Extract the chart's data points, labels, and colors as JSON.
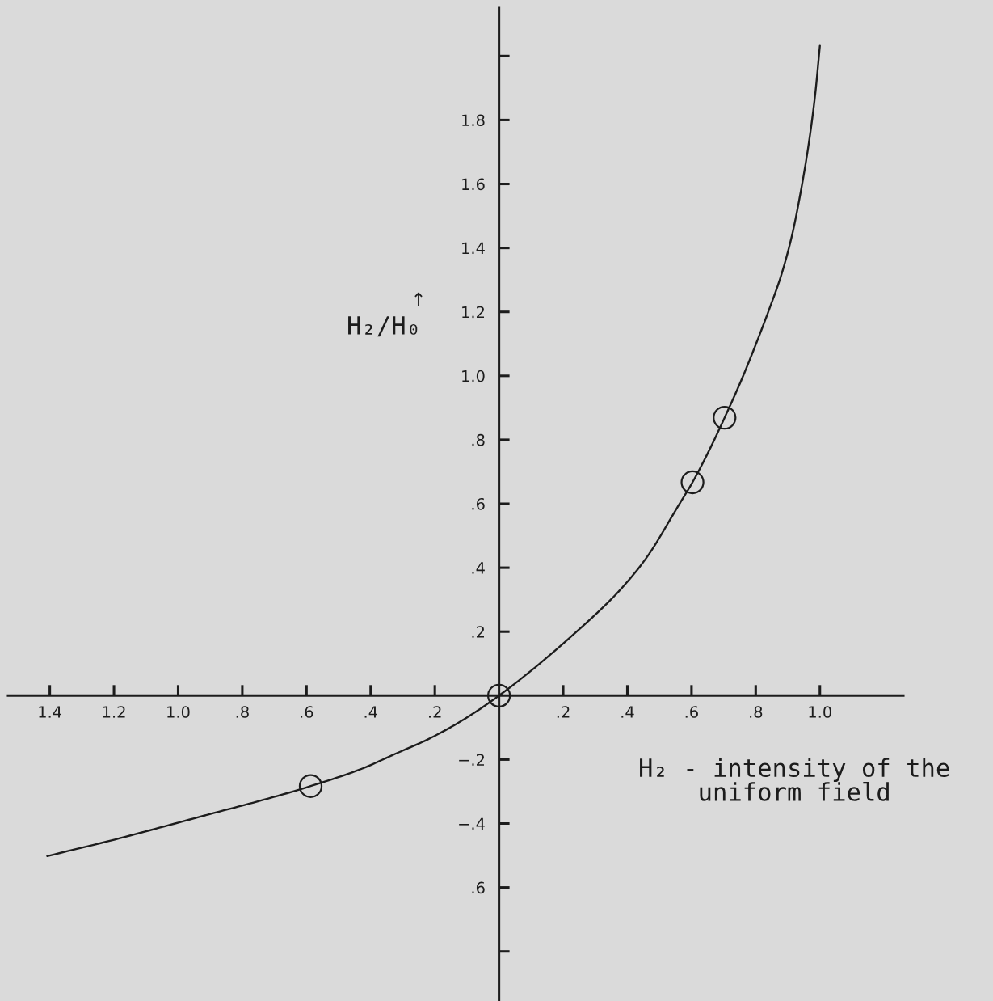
{
  "chart_data": {
    "type": "line",
    "xlabel": "H₂ - intensity of the\nuniform field",
    "ylabel": "H₂/H₀",
    "annotations": [
      "↑"
    ],
    "xlim": [
      -1.53,
      1.26
    ],
    "ylim": [
      -0.955,
      2.15
    ],
    "xticks": [
      {
        "value": -1.4,
        "label": "1.4"
      },
      {
        "value": -1.2,
        "label": "1.2"
      },
      {
        "value": -1.0,
        "label": "1.0"
      },
      {
        "value": -0.8,
        "label": ".8"
      },
      {
        "value": -0.6,
        "label": ".6"
      },
      {
        "value": -0.4,
        "label": ".4"
      },
      {
        "value": -0.2,
        "label": ".2"
      },
      {
        "value": 0.2,
        "label": ".2"
      },
      {
        "value": 0.4,
        "label": ".4"
      },
      {
        "value": 0.6,
        "label": ".6"
      },
      {
        "value": 0.8,
        "label": ".8"
      },
      {
        "value": 1.0,
        "label": "1.0"
      }
    ],
    "yticks": [
      {
        "value": 2.0,
        "label": null
      },
      {
        "value": 1.8,
        "label": "1.8"
      },
      {
        "value": 1.6,
        "label": "1.6"
      },
      {
        "value": 1.4,
        "label": "1.4"
      },
      {
        "value": 1.2,
        "label": "1.2"
      },
      {
        "value": 1.0,
        "label": "1.0"
      },
      {
        "value": 0.8,
        "label": ".8"
      },
      {
        "value": 0.6,
        "label": ".6"
      },
      {
        "value": 0.4,
        "label": ".4"
      },
      {
        "value": 0.2,
        "label": ".2"
      },
      {
        "value": -0.2,
        "label": "−.2"
      },
      {
        "value": -0.4,
        "label": "−.4"
      },
      {
        "value": -0.6,
        "label": ".6"
      },
      {
        "value": -0.8,
        "label": null
      }
    ],
    "series": [
      {
        "color": "#1c1c1c",
        "x": [
          -1.408,
          -1.197,
          -1.043,
          -0.888,
          -0.734,
          -0.587,
          -0.426,
          -0.323,
          -0.22,
          -0.117,
          0.0,
          0.29,
          0.375,
          0.458,
          0.559,
          0.603,
          0.656,
          0.703,
          0.758,
          0.801,
          0.845,
          0.879,
          0.913,
          0.942,
          0.966,
          0.985,
          1.0
        ],
        "values": [
          -0.502,
          -0.45,
          -0.409,
          -0.367,
          -0.326,
          -0.283,
          -0.228,
          -0.182,
          -0.136,
          -0.079,
          0.0,
          0.244,
          0.328,
          0.429,
          0.594,
          0.667,
          0.769,
          0.869,
          0.993,
          1.1,
          1.216,
          1.313,
          1.439,
          1.585,
          1.731,
          1.877,
          2.032
        ]
      },
      {
        "type": "scatter",
        "marker": "circle",
        "color": "#1c1c1c",
        "x": [
          -0.587,
          0.0,
          0.603,
          0.703
        ],
        "values": [
          -0.283,
          0.0,
          0.667,
          0.869
        ]
      }
    ]
  }
}
